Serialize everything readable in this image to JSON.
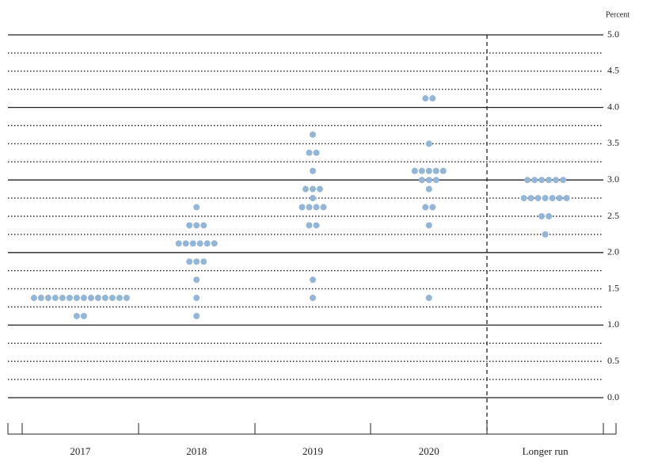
{
  "chart_data": {
    "type": "dot",
    "y_label": "Percent",
    "categories": [
      "2017",
      "2018",
      "2019",
      "2020",
      "Longer run"
    ],
    "color": "#93b5d8",
    "values": [
      [
        1.375,
        1.375,
        1.375,
        1.375,
        1.375,
        1.375,
        1.375,
        1.375,
        1.375,
        1.375,
        1.375,
        1.375,
        1.375,
        1.375,
        1.125,
        1.125
      ],
      [
        2.625,
        2.375,
        2.375,
        2.375,
        2.125,
        2.125,
        2.125,
        2.125,
        2.125,
        2.125,
        1.875,
        1.875,
        1.875,
        1.625,
        1.375,
        1.125
      ],
      [
        3.625,
        3.375,
        3.375,
        3.125,
        2.875,
        2.875,
        2.875,
        2.75,
        2.625,
        2.625,
        2.625,
        2.625,
        2.375,
        2.375,
        1.625,
        1.375
      ],
      [
        4.125,
        4.125,
        3.5,
        3.125,
        3.125,
        3.125,
        3.125,
        3.125,
        3.0,
        3.0,
        3.0,
        2.875,
        2.625,
        2.625,
        2.375,
        1.375
      ],
      [
        3.0,
        3.0,
        3.0,
        3.0,
        3.0,
        3.0,
        2.75,
        2.75,
        2.75,
        2.75,
        2.75,
        2.75,
        2.75,
        2.5,
        2.5,
        2.25
      ]
    ],
    "ylim": [
      0,
      5
    ],
    "yticks": [
      {
        "value": 0,
        "label": "0.0"
      },
      0.5,
      {
        "value": 1,
        "label": "1.0"
      },
      1.5,
      {
        "value": 2,
        "label": "2.0"
      },
      2.5,
      {
        "value": 3,
        "label": "3.0"
      },
      3.5,
      {
        "value": 4,
        "label": "4.0"
      },
      4.5,
      {
        "value": 5,
        "label": "5.0"
      }
    ],
    "minor_yticks": [
      0.25,
      0.75,
      1.25,
      1.75,
      2.25,
      2.75,
      3.25,
      3.75,
      4.25,
      4.75
    ],
    "grid": true
  }
}
